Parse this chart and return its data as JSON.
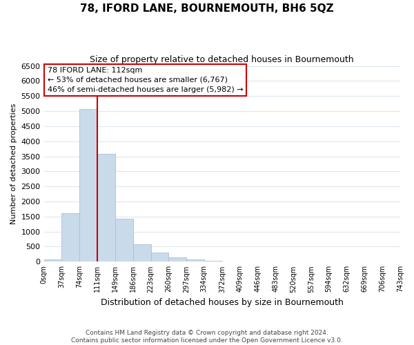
{
  "title": "78, IFORD LANE, BOURNEMOUTH, BH6 5QZ",
  "subtitle": "Size of property relative to detached houses in Bournemouth",
  "xlabel": "Distribution of detached houses by size in Bournemouth",
  "ylabel": "Number of detached properties",
  "bin_edges": [
    0,
    37,
    74,
    111,
    149,
    186,
    223,
    260,
    297,
    334,
    372,
    409,
    446,
    483,
    520,
    557,
    594,
    632,
    669,
    706,
    743
  ],
  "bin_labels": [
    "0sqm",
    "37sqm",
    "74sqm",
    "111sqm",
    "149sqm",
    "186sqm",
    "223sqm",
    "260sqm",
    "297sqm",
    "334sqm",
    "372sqm",
    "409sqm",
    "446sqm",
    "483sqm",
    "520sqm",
    "557sqm",
    "594sqm",
    "632sqm",
    "669sqm",
    "706sqm",
    "743sqm"
  ],
  "bar_heights": [
    75,
    1620,
    5080,
    3580,
    1420,
    590,
    300,
    145,
    75,
    20,
    10,
    5,
    0,
    0,
    0,
    0,
    0,
    0,
    0,
    0
  ],
  "bar_color": "#c9daea",
  "bar_edge_color": "#a8c0d4",
  "property_line_x": 111,
  "property_line_color": "#cc0000",
  "ylim": [
    0,
    6500
  ],
  "yticks": [
    0,
    500,
    1000,
    1500,
    2000,
    2500,
    3000,
    3500,
    4000,
    4500,
    5000,
    5500,
    6000,
    6500
  ],
  "annotation_title": "78 IFORD LANE: 112sqm",
  "annotation_line1": "← 53% of detached houses are smaller (6,767)",
  "annotation_line2": "46% of semi-detached houses are larger (5,982) →",
  "annotation_box_color": "#ffffff",
  "annotation_box_edge": "#cc0000",
  "footer_line1": "Contains HM Land Registry data © Crown copyright and database right 2024.",
  "footer_line2": "Contains public sector information licensed under the Open Government Licence v3.0.",
  "background_color": "#ffffff",
  "grid_color": "#dce8f0"
}
